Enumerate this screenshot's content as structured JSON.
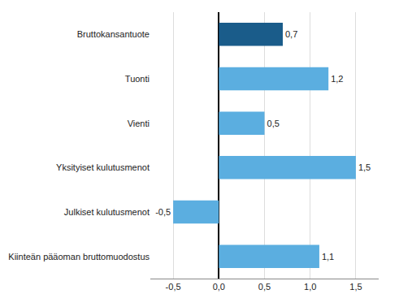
{
  "chart_data": {
    "type": "bar",
    "orientation": "horizontal",
    "categories": [
      "Kiinteän pääoman bruttomuodostus",
      "Julkiset kulutusmenot",
      "Yksityiset kulutusmenot",
      "Vienti",
      "Tuonti",
      "Bruttokansantuote"
    ],
    "values": [
      1.1,
      -0.5,
      1.5,
      0.5,
      1.2,
      0.7
    ],
    "value_labels": [
      "1,1",
      "-0,5",
      "1,5",
      "0,5",
      "1,2",
      "0,7"
    ],
    "data_labels": true,
    "colors": [
      "#5baee0",
      "#5baee0",
      "#5baee0",
      "#5baee0",
      "#5baee0",
      "#1a5c8a"
    ],
    "xlim": [
      -0.75,
      1.75
    ],
    "xticks": [
      {
        "value": -0.5,
        "label": "-0,5"
      },
      {
        "value": 0.0,
        "label": "0,0"
      },
      {
        "value": 0.5,
        "label": "0,5"
      },
      {
        "value": 1.0,
        "label": "1,0"
      },
      {
        "value": 1.5,
        "label": "1,5"
      }
    ],
    "grid": true
  }
}
